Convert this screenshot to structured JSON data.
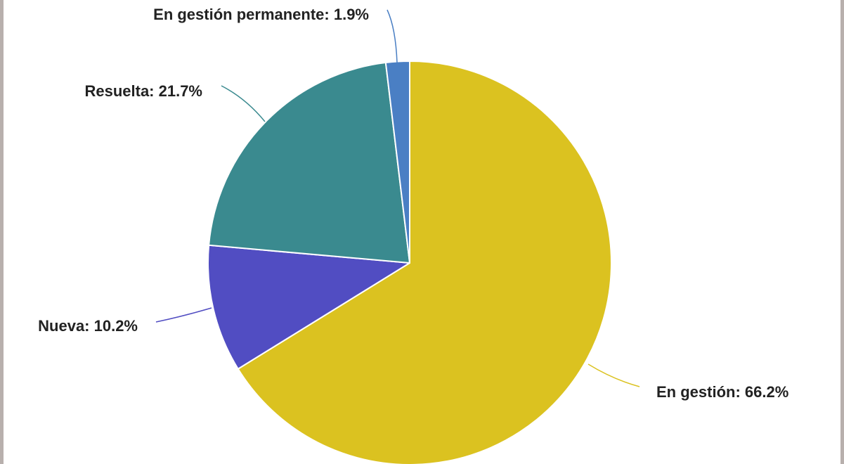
{
  "chart_data": {
    "type": "pie",
    "title": "",
    "slices": [
      {
        "label": "En gestión",
        "value": 66.2,
        "display": "En gestión: 66.2%",
        "color": "#DBC220"
      },
      {
        "label": "Nueva",
        "value": 10.2,
        "display": "Nueva: 10.2%",
        "color": "#514DC2"
      },
      {
        "label": "Resuelta",
        "value": 21.7,
        "display": "Resuelta: 21.7%",
        "color": "#3A8A8F"
      },
      {
        "label": "En gestión permanente",
        "value": 1.9,
        "display": "En gestión permanente: 1.9%",
        "color": "#4A7FC4"
      }
    ],
    "legend": "none",
    "labels_position": "outside-with-leaders"
  }
}
